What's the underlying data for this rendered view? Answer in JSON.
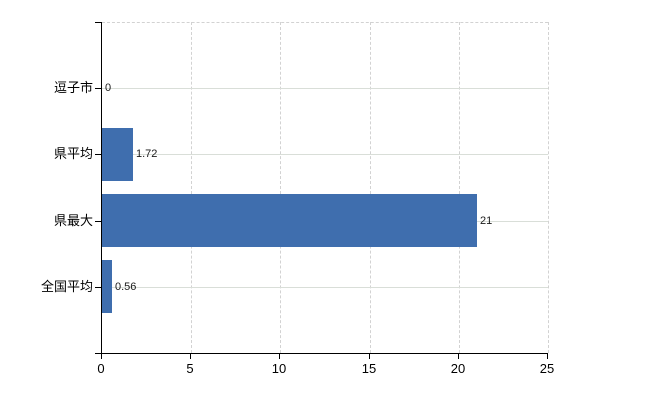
{
  "chart_data": {
    "type": "bar",
    "orientation": "horizontal",
    "categories": [
      "逗子市",
      "県平均",
      "県最大",
      "全国平均"
    ],
    "values": [
      0,
      1.72,
      21,
      0.56
    ],
    "value_labels": [
      "0",
      "1.72",
      "21",
      "0.56"
    ],
    "x_ticks": [
      0,
      5,
      10,
      15,
      20,
      25
    ],
    "x_tick_labels": [
      "0",
      "5",
      "10",
      "15",
      "20",
      "25"
    ],
    "xlim": [
      0,
      25
    ],
    "title": "",
    "xlabel": "",
    "ylabel": "",
    "legend": false,
    "grid": true,
    "bar_color": "#3f6eae",
    "grid_color_vertical": "#d2d2d2",
    "grid_color_horizontal": "#d9ded8",
    "axis_color": "#000000"
  }
}
